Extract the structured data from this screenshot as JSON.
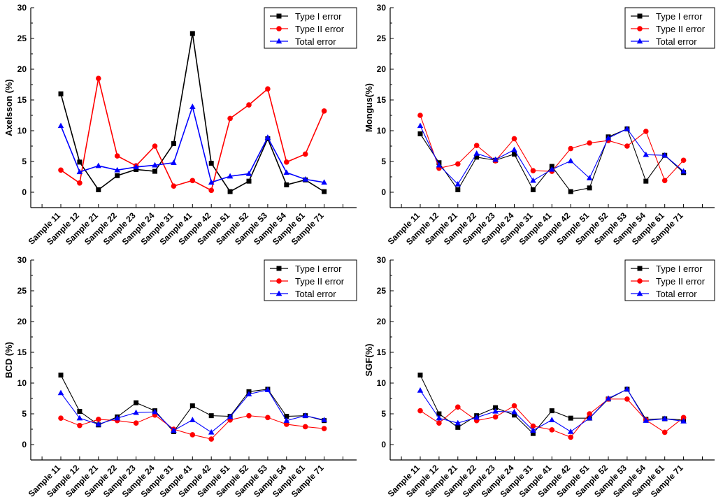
{
  "chart_data": [
    {
      "type": "line",
      "title": "",
      "xlabel": "",
      "ylabel": "Axelsson (%)",
      "ylim": [
        -2.5,
        30
      ],
      "yticks": [
        0,
        5,
        10,
        15,
        20,
        25,
        30
      ],
      "categories": [
        "Sample 11",
        "Sample 12",
        "Sample 21",
        "Sample 22",
        "Sample 23",
        "Sample 24",
        "Sample 31",
        "Sample 41",
        "Sample 42",
        "Sample 51",
        "Sample 52",
        "Sample 53",
        "Sample 54",
        "Sample 61",
        "Sample 71"
      ],
      "legend_position": "top-right",
      "series": [
        {
          "name": "Type I error",
          "color": "#000000",
          "marker": "square",
          "values": [
            16.0,
            4.9,
            0.4,
            2.7,
            3.7,
            3.4,
            7.9,
            25.8,
            4.7,
            0.1,
            1.8,
            8.7,
            1.2,
            2.0,
            0.1
          ]
        },
        {
          "name": "Type II error",
          "color": "#ff0000",
          "marker": "circle",
          "values": [
            3.6,
            1.5,
            18.5,
            5.9,
            4.3,
            7.5,
            1.0,
            1.9,
            0.3,
            12.0,
            14.2,
            16.8,
            4.9,
            6.2,
            13.2
          ]
        },
        {
          "name": "Total error",
          "color": "#0000ff",
          "marker": "triangle",
          "values": [
            10.8,
            3.3,
            4.3,
            3.6,
            4.1,
            4.4,
            4.8,
            13.9,
            1.6,
            2.6,
            3.0,
            8.9,
            3.2,
            2.1,
            1.6
          ]
        }
      ]
    },
    {
      "type": "line",
      "title": "",
      "xlabel": "",
      "ylabel": "Mongus(%)",
      "ylim": [
        -2.5,
        30
      ],
      "yticks": [
        0,
        5,
        10,
        15,
        20,
        25,
        30
      ],
      "categories": [
        "Sample 11",
        "Sample 12",
        "Sample 21",
        "Sample 22",
        "Sample 23",
        "Sample 24",
        "Sample 31",
        "Sample 41",
        "Sample 42",
        "Sample 51",
        "Sample 52",
        "Sample 53",
        "Sample 54",
        "Sample 61",
        "Sample 71"
      ],
      "legend_position": "top-right",
      "series": [
        {
          "name": "Type I error",
          "color": "#000000",
          "marker": "square",
          "values": [
            9.5,
            4.8,
            0.4,
            5.7,
            5.2,
            6.2,
            0.4,
            4.2,
            0.1,
            0.7,
            9.0,
            10.3,
            1.8,
            6.0,
            3.2
          ]
        },
        {
          "name": "Type II error",
          "color": "#ff0000",
          "marker": "circle",
          "values": [
            12.5,
            3.9,
            4.6,
            7.6,
            5.1,
            8.7,
            3.5,
            3.4,
            7.1,
            8.0,
            8.4,
            7.5,
            9.9,
            1.9,
            5.2
          ]
        },
        {
          "name": "Total error",
          "color": "#0000ff",
          "marker": "triangle",
          "values": [
            10.8,
            4.4,
            1.3,
            6.3,
            5.3,
            6.9,
            1.9,
            3.7,
            5.1,
            2.3,
            8.8,
            10.3,
            6.1,
            6.0,
            3.4
          ]
        }
      ]
    },
    {
      "type": "line",
      "title": "",
      "xlabel": "",
      "ylabel": "BCD (%)",
      "ylim": [
        -2.5,
        30
      ],
      "yticks": [
        0,
        5,
        10,
        15,
        20,
        25,
        30
      ],
      "categories": [
        "Sample 11",
        "Sample 12",
        "Sample 21",
        "Sample 22",
        "Sample 23",
        "Sample 24",
        "Sample 31",
        "Sample 41",
        "Sample 42",
        "Sample 51",
        "Sample 52",
        "Sample 53",
        "Sample 54",
        "Sample 61",
        "Sample 71"
      ],
      "legend_position": "top-right",
      "series": [
        {
          "name": "Type I error",
          "color": "#000000",
          "marker": "square",
          "values": [
            11.3,
            5.4,
            3.2,
            4.5,
            6.8,
            5.5,
            2.1,
            6.3,
            4.7,
            4.6,
            8.6,
            9.0,
            4.6,
            4.7,
            3.9
          ]
        },
        {
          "name": "Type II error",
          "color": "#ff0000",
          "marker": "circle",
          "values": [
            4.3,
            3.1,
            4.1,
            3.9,
            3.5,
            4.8,
            2.5,
            1.6,
            0.9,
            4.0,
            4.7,
            4.4,
            3.3,
            2.9,
            2.6
          ]
        },
        {
          "name": "Total error",
          "color": "#0000ff",
          "marker": "triangle",
          "values": [
            8.4,
            4.3,
            3.3,
            4.3,
            5.2,
            5.3,
            2.3,
            4.0,
            2.0,
            4.5,
            8.2,
            8.9,
            3.9,
            4.7,
            4.0
          ]
        }
      ]
    },
    {
      "type": "line",
      "title": "",
      "xlabel": "",
      "ylabel": "SGF(%)",
      "ylim": [
        -2.5,
        30
      ],
      "yticks": [
        0,
        5,
        10,
        15,
        20,
        25,
        30
      ],
      "categories": [
        "Sample 11",
        "Sample 12",
        "Sample 21",
        "Sample 22",
        "Sample 23",
        "Sample 24",
        "Sample 31",
        "Sample 41",
        "Sample 42",
        "Sample 51",
        "Sample 52",
        "Sample 53",
        "Sample 54",
        "Sample 61",
        "Sample 71"
      ],
      "legend_position": "top-right",
      "series": [
        {
          "name": "Type I error",
          "color": "#000000",
          "marker": "square",
          "values": [
            11.3,
            5.0,
            2.8,
            4.7,
            6.0,
            4.8,
            1.8,
            5.5,
            4.3,
            4.3,
            7.4,
            9.0,
            4.1,
            4.2,
            4.0
          ]
        },
        {
          "name": "Type II error",
          "color": "#ff0000",
          "marker": "circle",
          "values": [
            5.5,
            3.5,
            6.1,
            3.9,
            4.5,
            6.3,
            3.0,
            2.4,
            1.2,
            5.0,
            7.4,
            7.4,
            4.0,
            2.0,
            4.4
          ]
        },
        {
          "name": "Total error",
          "color": "#0000ff",
          "marker": "triangle",
          "values": [
            8.8,
            4.3,
            3.5,
            4.4,
            5.4,
            5.3,
            2.3,
            4.0,
            2.1,
            4.3,
            7.5,
            9.0,
            3.9,
            4.2,
            3.8
          ]
        }
      ]
    }
  ]
}
